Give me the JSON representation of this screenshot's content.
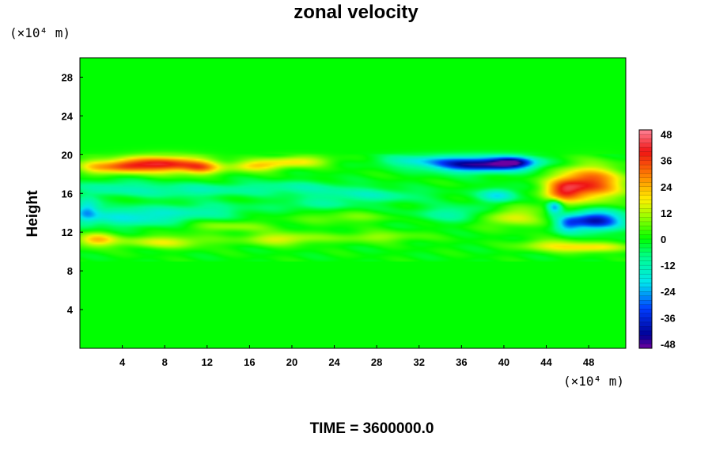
{
  "chart_data": {
    "type": "heatmap",
    "title": "zonal velocity",
    "ylabel": "Height",
    "x_unit_label": "(×10⁴ m)",
    "y_unit_label": "(×10⁴ m)",
    "footer": "TIME = 3600000.0",
    "xlim": [
      0,
      51.5
    ],
    "ylim": [
      0,
      30
    ],
    "x_ticks": [
      4,
      8,
      12,
      16,
      20,
      24,
      28,
      32,
      36,
      40,
      44,
      48
    ],
    "y_ticks": [
      4,
      8,
      12,
      16,
      20,
      24,
      28
    ],
    "colorbar": {
      "range": [
        -50,
        50
      ],
      "ticks": [
        48,
        36,
        24,
        12,
        0,
        -12,
        -24,
        -36,
        -48
      ]
    },
    "features": [
      {
        "x": 8,
        "y": 19,
        "value": 40,
        "sx": 2.6,
        "sy": 0.6
      },
      {
        "x": 4,
        "y": 18.8,
        "value": 25,
        "sx": 1.6,
        "sy": 0.5
      },
      {
        "x": 11.5,
        "y": 18.6,
        "value": 20,
        "sx": 1.2,
        "sy": 0.5
      },
      {
        "x": 16.5,
        "y": 18.8,
        "value": 20,
        "sx": 1.8,
        "sy": 0.4
      },
      {
        "x": 20.5,
        "y": 19.3,
        "value": 18,
        "sx": 2.2,
        "sy": 0.4
      },
      {
        "x": 1.2,
        "y": 18.7,
        "value": 14,
        "sx": 1.2,
        "sy": 0.6
      },
      {
        "x": 37.5,
        "y": 19.0,
        "value": -46,
        "sx": 3.2,
        "sy": 0.55
      },
      {
        "x": 41,
        "y": 19.2,
        "value": -30,
        "sx": 1.4,
        "sy": 0.4
      },
      {
        "x": 31.5,
        "y": 19.4,
        "value": -12,
        "sx": 2.5,
        "sy": 0.4
      },
      {
        "x": 48,
        "y": 17,
        "value": 38,
        "sx": 2.2,
        "sy": 1.2
      },
      {
        "x": 45.5,
        "y": 16.2,
        "value": 24,
        "sx": 1.2,
        "sy": 0.8
      },
      {
        "x": 48.6,
        "y": 13.2,
        "value": -42,
        "sx": 1.8,
        "sy": 0.7
      },
      {
        "x": 44.8,
        "y": 14.6,
        "value": -28,
        "sx": 0.5,
        "sy": 0.5
      },
      {
        "x": 46,
        "y": 12.8,
        "value": -18,
        "sx": 0.8,
        "sy": 0.6
      },
      {
        "x": 39.5,
        "y": 15.8,
        "value": -20,
        "sx": 1.2,
        "sy": 0.5
      },
      {
        "x": 40.5,
        "y": 13.6,
        "value": 18,
        "sx": 2.2,
        "sy": 0.7
      },
      {
        "x": 36,
        "y": 13.9,
        "value": -12,
        "sx": 3,
        "sy": 0.6
      },
      {
        "x": 48,
        "y": 10.4,
        "value": 20,
        "sx": 2.5,
        "sy": 0.35
      },
      {
        "x": 44,
        "y": 10.7,
        "value": 12,
        "sx": 2,
        "sy": 0.4
      },
      {
        "x": 5,
        "y": 13.6,
        "value": -18,
        "sx": 3.5,
        "sy": 0.7
      },
      {
        "x": 0.6,
        "y": 14.2,
        "value": -20,
        "sx": 0.8,
        "sy": 0.9
      },
      {
        "x": 12,
        "y": 14.2,
        "value": -10,
        "sx": 3,
        "sy": 0.6
      },
      {
        "x": 10,
        "y": 16.3,
        "value": -12,
        "sx": 4,
        "sy": 0.5
      },
      {
        "x": 3,
        "y": 16.6,
        "value": -10,
        "sx": 2.5,
        "sy": 0.6
      },
      {
        "x": 20,
        "y": 16.6,
        "value": -10,
        "sx": 4,
        "sy": 0.5
      },
      {
        "x": 27,
        "y": 15.8,
        "value": -12,
        "sx": 4,
        "sy": 0.5
      },
      {
        "x": 1.5,
        "y": 11.2,
        "value": 22,
        "sx": 1.3,
        "sy": 0.5
      },
      {
        "x": 8,
        "y": 11.0,
        "value": 16,
        "sx": 3,
        "sy": 0.45
      },
      {
        "x": 19,
        "y": 11.3,
        "value": 16,
        "sx": 2.5,
        "sy": 0.45
      },
      {
        "x": 28,
        "y": 11.5,
        "value": 10,
        "sx": 3,
        "sy": 0.4
      },
      {
        "x": 14,
        "y": 12.6,
        "value": 10,
        "sx": 3,
        "sy": 0.4
      },
      {
        "x": 25,
        "y": 13.5,
        "value": 8,
        "sx": 3,
        "sy": 0.4
      },
      {
        "x": 22,
        "y": 14.8,
        "value": -8,
        "sx": 3,
        "sy": 0.4
      }
    ]
  }
}
